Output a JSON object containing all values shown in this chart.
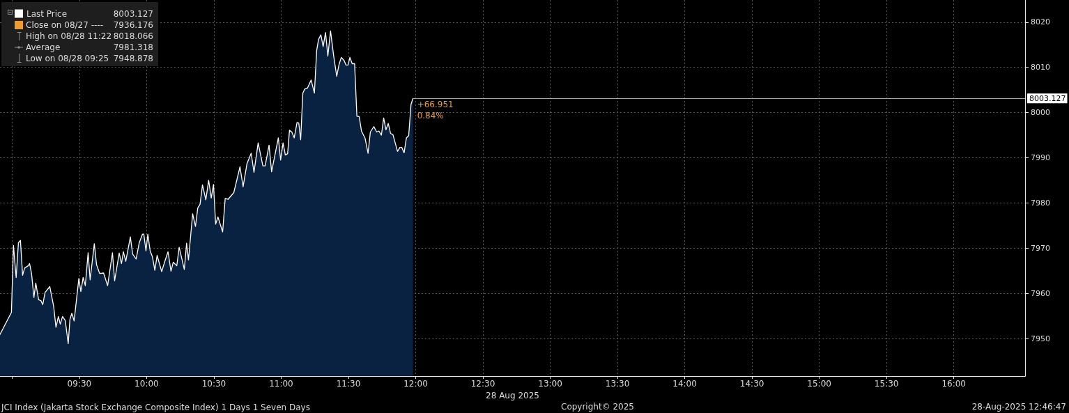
{
  "chart_data": {
    "type": "area",
    "title": "JCI Index (Jakarta Stock Exchange Composite Index) 1 Days 1 Seven Days",
    "xlabel": "28 Aug 2025",
    "x": [
      8.91,
      8.995,
      9.01,
      9.03,
      9.047,
      9.062,
      9.078,
      9.093,
      9.119,
      9.13,
      9.145,
      9.162,
      9.176,
      9.197,
      9.214,
      9.228,
      9.245,
      9.28,
      9.309,
      9.326,
      9.344,
      9.358,
      9.375,
      9.395,
      9.417,
      9.43,
      9.444,
      9.461,
      9.496,
      9.511,
      9.528,
      9.544,
      9.565,
      9.58,
      9.611,
      9.628,
      9.651,
      9.68,
      9.71,
      9.746,
      9.762,
      9.796,
      9.813,
      9.827,
      9.845,
      9.879,
      9.896,
      9.922,
      9.945,
      9.969,
      9.979,
      9.995,
      10.009,
      10.026,
      10.043,
      10.061,
      10.078,
      10.112,
      10.133,
      10.159,
      10.181,
      10.198,
      10.224,
      10.242,
      10.28,
      10.297,
      10.311,
      10.342,
      10.363,
      10.38,
      10.397,
      10.415,
      10.44,
      10.461,
      10.48,
      10.497,
      10.513,
      10.53,
      10.565,
      10.584,
      10.605,
      10.648,
      10.694,
      10.717,
      10.746,
      10.777,
      10.798,
      10.829,
      10.864,
      10.881,
      10.91,
      10.929,
      10.979,
      10.996,
      11.014,
      11.031,
      11.048,
      11.062,
      11.079,
      11.097,
      11.118,
      11.131,
      11.145,
      11.161,
      11.175,
      11.195,
      11.223,
      11.247,
      11.264,
      11.278,
      11.295,
      11.312,
      11.33,
      11.347,
      11.367,
      11.39,
      11.413,
      11.43,
      11.447,
      11.468,
      11.482,
      11.497,
      11.511,
      11.528,
      11.546,
      11.563,
      11.58,
      11.597,
      11.623,
      11.646,
      11.663,
      11.689,
      11.71,
      11.727,
      11.745,
      11.762,
      11.779,
      11.796,
      11.813,
      11.831,
      11.865,
      11.883,
      11.896,
      11.914,
      11.931,
      11.948,
      11.965,
      11.98
    ],
    "series": [
      {
        "name": "Last Price",
        "color": "#ffffff",
        "values": [
          7950.9,
          7955.8,
          7970.6,
          7963.5,
          7971.2,
          7971.7,
          7964.0,
          7965.6,
          7966.1,
          7966.6,
          7964.3,
          7959.1,
          7962.3,
          7958.6,
          7958.4,
          7957.5,
          7960.2,
          7961.5,
          7957.1,
          7952.5,
          7954.9,
          7953.2,
          7954.9,
          7954.0,
          7948.878,
          7954.3,
          7955.6,
          7953.9,
          7963.3,
          7960.4,
          7963.5,
          7961.7,
          7969.0,
          7963.0,
          7971.0,
          7966.3,
          7964.4,
          7964.5,
          7961.7,
          7969.0,
          7962.8,
          7968.9,
          7966.6,
          7969.2,
          7967.1,
          7972.5,
          7968.7,
          7967.6,
          7971.2,
          7973.1,
          7973.1,
          7969.4,
          7973.1,
          7969.4,
          7968.1,
          7965.1,
          7968.4,
          7964.8,
          7966.9,
          7969.2,
          7964.9,
          7966.9,
          7966.1,
          7970.2,
          7965.3,
          7971.1,
          7967.4,
          7977.6,
          7974.8,
          7978.9,
          7979.7,
          7984.0,
          7980.7,
          7985.0,
          7981.1,
          7984.1,
          7975.3,
          7976.9,
          7973.6,
          7981.0,
          7980.8,
          7982.3,
          7988.0,
          7983.6,
          7988.7,
          7991.0,
          7986.8,
          7993.3,
          7988.2,
          7988.2,
          7992.8,
          7986.9,
          7994.4,
          7989.5,
          7993.3,
          7990.6,
          7990.9,
          7996.1,
          7995.7,
          7994.4,
          7997.8,
          7997.7,
          7994.0,
          8004.3,
          8005.2,
          8005.4,
          8007.2,
          8004.3,
          8013.7,
          8016.2,
          8017.2,
          8014.6,
          8017.7,
          8012.5,
          8018.066,
          8012.6,
          8008.0,
          8010.6,
          8012.2,
          8011.5,
          8010.5,
          8010.5,
          8012.2,
          8010.8,
          8010.8,
          7999.2,
          7999.1,
          7995.9,
          7994.4,
          7991.0,
          7995.7,
          7996.9,
          7995.7,
          7995.9,
          7995.0,
          7998.8,
          7996.2,
          7997.6,
          7995.4,
          7995.1,
          7991.4,
          7992.3,
          7992.3,
          7991.1,
          7994.4,
          7994.9,
          8001.8,
          8003.127
        ]
      }
    ],
    "xlim": [
      8.91,
      16.53
    ],
    "xticks": [
      {
        "value": 9,
        "label": null
      },
      {
        "value": 9.5,
        "label": "09:30"
      },
      {
        "value": 10,
        "label": "10:00"
      },
      {
        "value": 10.5,
        "label": "10:30"
      },
      {
        "value": 11,
        "label": "11:00"
      },
      {
        "value": 11.5,
        "label": "11:30"
      },
      {
        "value": 12,
        "label": "12:00"
      },
      {
        "value": 12.5,
        "label": "12:30"
      },
      {
        "value": 13,
        "label": "13:00"
      },
      {
        "value": 13.5,
        "label": "13:30"
      },
      {
        "value": 14,
        "label": "14:00"
      },
      {
        "value": 14.5,
        "label": "14:30"
      },
      {
        "value": 15,
        "label": "15:00"
      },
      {
        "value": 15.5,
        "label": "15:30"
      },
      {
        "value": 16,
        "label": "16:00"
      }
    ],
    "ylim": [
      7941.7,
      8024.9
    ],
    "yticks": [
      7950,
      7960,
      7970,
      7980,
      7990,
      8000,
      8010,
      8020
    ],
    "grid": true,
    "legend": "top left",
    "marker": "none",
    "ref_lines": [
      {
        "axis": "y",
        "value": 8003.127,
        "label": "8003.127",
        "color": "#f39b2a"
      }
    ],
    "annotations": [
      {
        "text": "+66.951",
        "x": 11.98,
        "y": 8003.127
      },
      {
        "text": "0.84%",
        "x": 11.98,
        "y": 8003.127
      },
      "8003.127",
      "Close on 08/27 ---- 7936.176",
      "High on 08/28 11:22 8018.066",
      "Average 7981.318",
      "Low on 08/28 09:25 7948.878",
      "Copyright© 2025",
      "28-Aug-2025 12:46:47"
    ]
  }
}
